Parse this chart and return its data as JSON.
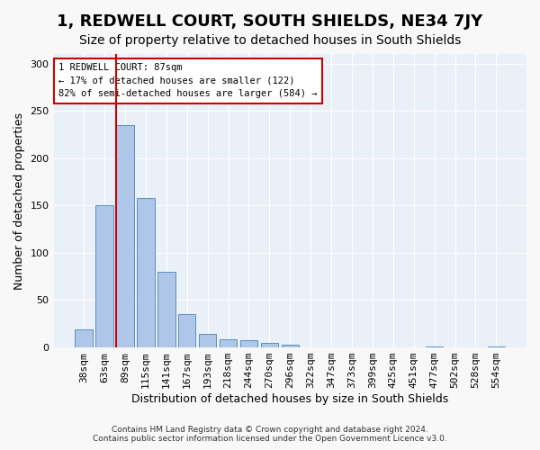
{
  "title": "1, REDWELL COURT, SOUTH SHIELDS, NE34 7JY",
  "subtitle": "Size of property relative to detached houses in South Shields",
  "xlabel": "Distribution of detached houses by size in South Shields",
  "ylabel": "Number of detached properties",
  "footer_line1": "Contains HM Land Registry data © Crown copyright and database right 2024.",
  "footer_line2": "Contains public sector information licensed under the Open Government Licence v3.0.",
  "bins": [
    "38sqm",
    "63sqm",
    "89sqm",
    "115sqm",
    "141sqm",
    "167sqm",
    "193sqm",
    "218sqm",
    "244sqm",
    "270sqm",
    "296sqm",
    "322sqm",
    "347sqm",
    "373sqm",
    "399sqm",
    "425sqm",
    "451sqm",
    "477sqm",
    "502sqm",
    "528sqm",
    "554sqm"
  ],
  "values": [
    19,
    150,
    235,
    158,
    80,
    35,
    14,
    9,
    8,
    5,
    3,
    0,
    0,
    0,
    0,
    0,
    0,
    1,
    0,
    0,
    1
  ],
  "bar_color": "#aec6e8",
  "bar_edge_color": "#5a8fc0",
  "vline_x": 1.575,
  "vline_color": "#cc0000",
  "annotation_text": "1 REDWELL COURT: 87sqm\n← 17% of detached houses are smaller (122)\n82% of semi-detached houses are larger (584) →",
  "annotation_box_color": "#ffffff",
  "annotation_box_edge_color": "#cc0000",
  "ylim": [
    0,
    310
  ],
  "yticks": [
    0,
    50,
    100,
    150,
    200,
    250,
    300
  ],
  "bg_color": "#eaf0f8",
  "grid_color": "#ffffff",
  "title_fontsize": 13,
  "subtitle_fontsize": 10,
  "axis_fontsize": 9,
  "tick_fontsize": 8
}
